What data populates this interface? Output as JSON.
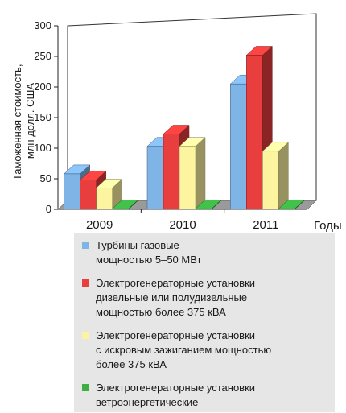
{
  "chart_data": {
    "type": "bar",
    "style": "3d-clustered",
    "categories": [
      "2009",
      "2010",
      "2011"
    ],
    "xlabel": "Годы",
    "ylabel_lines": [
      "Таможенная стоимость,",
      "млн долл. США"
    ],
    "ylim": [
      0,
      300
    ],
    "yticks": [
      0,
      50,
      100,
      150,
      200,
      250,
      300
    ],
    "grid": false,
    "legend_position": "bottom",
    "series": [
      {
        "name": "Турбины газовые\nмощностью 5–50 МВт",
        "color": "#7eb4e6",
        "values": [
          58,
          103,
          205
        ]
      },
      {
        "name": "Электрогенераторные установки\n дизельные или полудизельные\nмощностью более 375 кВА",
        "color": "#e83e3e",
        "values": [
          48,
          123,
          252
        ]
      },
      {
        "name": "Электрогенераторные установки\nс искровым зажиганием мощностью\nболее 375 кВА",
        "color": "#fdf4a0",
        "values": [
          35,
          103,
          95
        ]
      },
      {
        "name": "Электрогенераторные установки\nветроэнергетические",
        "color": "#3cb043",
        "values": [
          1,
          1,
          1
        ]
      }
    ]
  }
}
